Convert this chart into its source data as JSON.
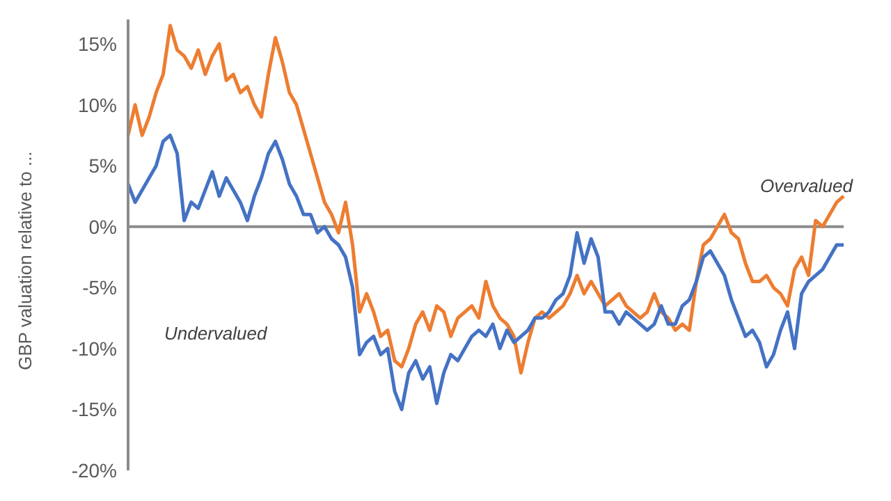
{
  "chart_data": {
    "type": "line",
    "ylabel": "GBP valuation relative to ...",
    "categories": [
      null,
      null,
      null,
      null,
      null,
      null,
      null,
      null,
      null,
      null,
      null,
      null,
      null,
      null,
      null,
      null,
      null,
      null,
      null,
      null,
      null,
      null,
      null,
      null,
      null,
      null,
      null,
      null,
      null,
      null,
      null,
      null,
      null,
      null,
      null,
      null,
      null,
      null,
      null,
      null,
      null,
      null,
      null,
      null,
      null,
      null,
      null,
      null,
      null,
      null,
      null,
      null,
      null,
      null,
      null,
      null,
      null,
      null,
      null,
      null,
      null,
      null,
      null,
      null,
      null,
      null,
      null,
      null,
      null,
      null,
      null,
      null,
      null,
      null,
      null,
      null,
      null,
      null,
      null,
      null,
      null,
      null,
      null,
      null,
      null,
      null,
      null,
      null,
      null,
      null,
      null,
      null,
      null,
      null,
      null,
      null,
      null,
      null,
      null,
      null,
      null,
      null,
      null
    ],
    "series": [
      {
        "color": "#ed7d31",
        "values": [
          7.5,
          10,
          7.5,
          9,
          11,
          12.5,
          16.5,
          14.5,
          14,
          13,
          14.5,
          12.5,
          14,
          15,
          12,
          12.5,
          11,
          11.5,
          10,
          9,
          12.5,
          15.5,
          13.5,
          11,
          10,
          8,
          6,
          4,
          2,
          1,
          -0.5,
          2,
          -1.5,
          -7,
          -5.5,
          -7,
          -9,
          -8.5,
          -11,
          -11.5,
          -10,
          -8,
          -7,
          -8.5,
          -6.5,
          -7,
          -9,
          -7.5,
          -7,
          -6.5,
          -7.5,
          -4.5,
          -6.5,
          -7.5,
          -8,
          -9,
          -12,
          -9.5,
          -7.5,
          -7,
          -7.5,
          -7,
          -6.5,
          -5.5,
          -4,
          -5.5,
          -4.5,
          -5.5,
          -6.5,
          -6,
          -5.5,
          -6.5,
          -7,
          -7.5,
          -7,
          -5.5,
          -7,
          -7.5,
          -8.5,
          -8,
          -8.5,
          -4.5,
          -1.5,
          -1,
          0,
          1,
          -0.5,
          -1,
          -3,
          -4.5,
          -4.5,
          -4,
          -5,
          -5.5,
          -6.5,
          -3.5,
          -2.5,
          -4,
          0.5,
          0,
          1,
          2,
          2.5
        ]
      },
      {
        "color": "#4472c4",
        "values": [
          3.5,
          2,
          3,
          4,
          5,
          7,
          7.5,
          6,
          0.5,
          2,
          1.5,
          3,
          4.5,
          2.5,
          4,
          3,
          2,
          0.5,
          2.5,
          4,
          6,
          7,
          5.5,
          3.5,
          2.5,
          1,
          1,
          -0.5,
          0,
          -1,
          -1.5,
          -2.5,
          -5,
          -10.5,
          -9.5,
          -9,
          -10.5,
          -10,
          -13.5,
          -15,
          -12,
          -11,
          -12.5,
          -11.5,
          -14.5,
          -12,
          -10.5,
          -11,
          -10,
          -9,
          -8.5,
          -9,
          -8,
          -10,
          -8.5,
          -9.5,
          -9,
          -8.5,
          -7.5,
          -7.5,
          -7,
          -6,
          -5.5,
          -4,
          -0.5,
          -3,
          -1,
          -2.5,
          -7,
          -7,
          -8,
          -7,
          -7.5,
          -8,
          -8.5,
          -8,
          -6.5,
          -8,
          -8,
          -6.5,
          -6,
          -4.5,
          -2.5,
          -2,
          -3,
          -4,
          -6,
          -7.5,
          -9,
          -8.5,
          -9.5,
          -11.5,
          -10.5,
          -8.5,
          -7,
          -10,
          -5.5,
          -4.5,
          -4,
          -3.5,
          -2.5,
          -1.5,
          -1.5
        ]
      }
    ],
    "ylim": [
      -20,
      17
    ],
    "yticks": [
      {
        "value": -20,
        "label": "-20%"
      },
      {
        "value": -15,
        "label": "-15%"
      },
      {
        "value": -10,
        "label": "-10%"
      },
      {
        "value": -5,
        "label": "-5%"
      },
      {
        "value": 0,
        "label": "0%"
      },
      {
        "value": 5,
        "label": "5%"
      },
      {
        "value": 10,
        "label": "10%"
      },
      {
        "value": 15,
        "label": "15%"
      }
    ],
    "ref_lines": [
      {
        "axis": "y",
        "value": 0,
        "color": "#8c8c8c"
      }
    ],
    "annotations": [
      "Undervalued",
      "Overvalued"
    ],
    "grid": false,
    "legend": false,
    "marker": "none",
    "line_style": "solid"
  }
}
